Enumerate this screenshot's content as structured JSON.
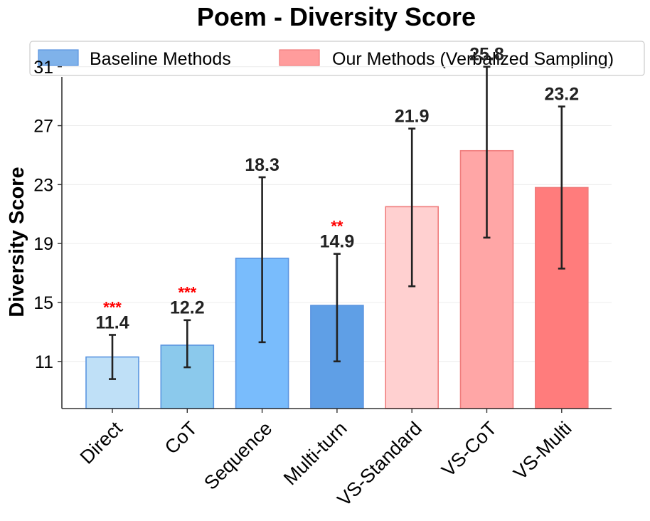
{
  "chart_data": {
    "type": "bar",
    "title": "Poem - Diversity Score",
    "xlabel": "",
    "ylabel": "Diversity Score",
    "ylim": [
      7.8,
      34.0
    ],
    "yticks": [
      11,
      15,
      19,
      23,
      27,
      31
    ],
    "grid": "horizontal",
    "legend": {
      "placement": "top",
      "entries": [
        {
          "label": "Baseline Methods",
          "color": "#7fb2ea"
        },
        {
          "label": "Our Methods (Verbalized Sampling)",
          "color": "#ff9c9c"
        }
      ]
    },
    "categories": [
      "Direct",
      "CoT",
      "Sequence",
      "Multi-turn",
      "VS-Standard",
      "VS-CoT",
      "VS-Multi"
    ],
    "values": [
      11.4,
      12.2,
      18.3,
      14.9,
      21.9,
      25.8,
      23.2
    ],
    "bar_heights": [
      11.3,
      12.1,
      18.0,
      14.8,
      21.5,
      25.3,
      22.8
    ],
    "error_low": [
      9.8,
      10.6,
      12.3,
      11.0,
      16.1,
      19.4,
      17.3
    ],
    "error_high": [
      12.8,
      13.8,
      23.5,
      18.3,
      26.8,
      31.0,
      28.3
    ],
    "label_y": [
      12.9,
      13.9,
      23.6,
      18.4,
      26.9,
      31.1,
      28.4
    ],
    "significance": [
      "***",
      "***",
      "",
      "**",
      "",
      "",
      ""
    ],
    "groups": [
      "baseline",
      "baseline",
      "baseline",
      "baseline",
      "ours",
      "ours",
      "ours"
    ],
    "bar_colors": [
      "#bfe0f7",
      "#8bc9ec",
      "#79bcfc",
      "#5f9fe6",
      "#ffd0d0",
      "#ffa6a6",
      "#ff7c7c"
    ],
    "edge_colors": [
      "#5a94e0",
      "#5a94e0",
      "#5a94e0",
      "#5a94e0",
      "#f07c7c",
      "#f07c7c",
      "#f07c7c"
    ]
  }
}
